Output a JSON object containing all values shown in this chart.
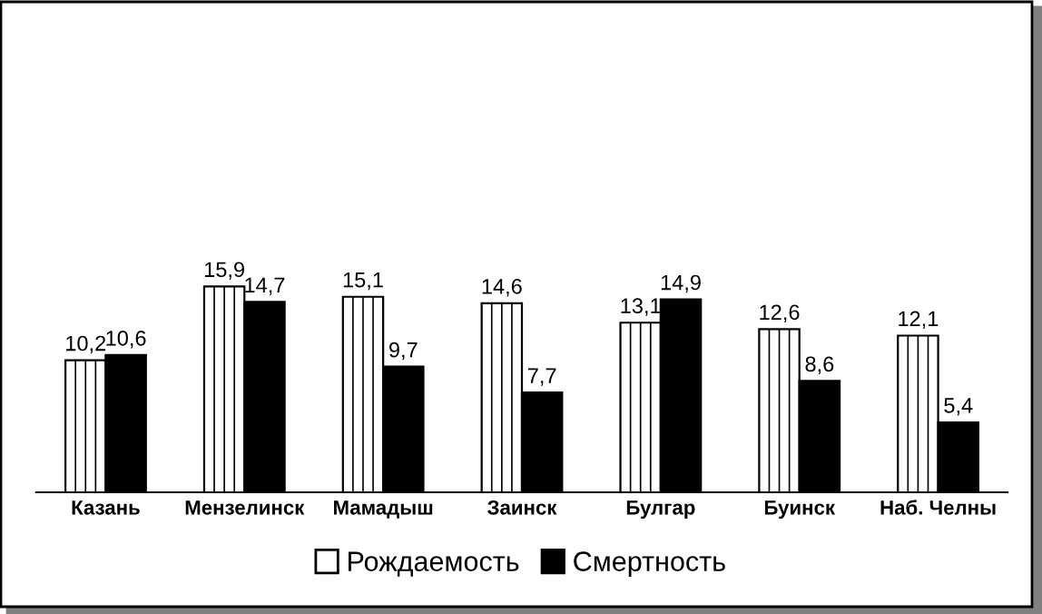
{
  "chart_data": {
    "type": "bar",
    "categories": [
      "Казань",
      "Мензелинск",
      "Мамадыш",
      "Заинск",
      "Булгар",
      "Буинск",
      "Наб. Челны"
    ],
    "series": [
      {
        "name": "Рождаемость",
        "color": "#ffffff",
        "values": [
          10.2,
          15.9,
          15.1,
          14.6,
          13.1,
          12.6,
          12.1
        ],
        "value_labels": [
          "10,2",
          "15,9",
          "15,1",
          "14,6",
          "13,1",
          "12,6",
          "12,1"
        ]
      },
      {
        "name": "Смертность",
        "color": "#000000",
        "values": [
          10.6,
          14.7,
          9.7,
          7.7,
          14.9,
          8.6,
          5.4
        ],
        "value_labels": [
          "10,6",
          "14,7",
          "9,7",
          "7,7",
          "14,9",
          "8,6",
          "5,4"
        ]
      }
    ],
    "legend": "bottom",
    "grid": false
  }
}
